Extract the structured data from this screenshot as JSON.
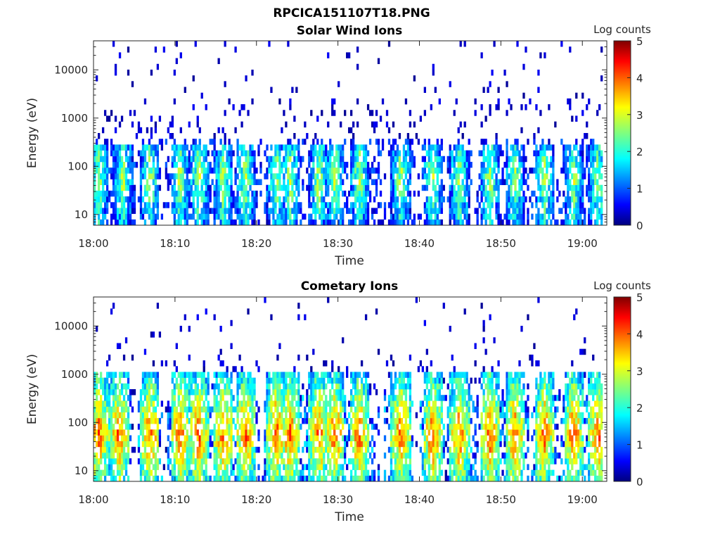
{
  "figure_title": "RPCICA151107T18.PNG",
  "colorbar_label": "Log counts",
  "chart_data": [
    {
      "type": "heatmap",
      "title": "Solar Wind Ions",
      "xlabel": "Time",
      "ylabel": "Energy (eV)",
      "x_ticks": [
        "18:00",
        "18:10",
        "18:20",
        "18:30",
        "18:40",
        "18:50",
        "19:00"
      ],
      "x_range_minutes": [
        0,
        63
      ],
      "y_scale": "log",
      "y_ticks": [
        10,
        100,
        1000,
        10000
      ],
      "y_range": [
        6,
        40000
      ],
      "colorbar": {
        "label": "Log counts",
        "range": [
          0,
          5
        ],
        "ticks": [
          0,
          1,
          2,
          3,
          4,
          5
        ],
        "colormap": "jet"
      },
      "peak_minutes": [
        0.5,
        3.5,
        6.8,
        10.5,
        12.8,
        15.8,
        18.5,
        22.3,
        24.0,
        27.5,
        29.5,
        32.5,
        37.6,
        41.5,
        44.8,
        48.5,
        51.6,
        55.2,
        58.8,
        61.8
      ],
      "peak_level_range": [
        1.0,
        2.8
      ],
      "peak_energy_eV": [
        20,
        300
      ]
    },
    {
      "type": "heatmap",
      "title": "Cometary Ions",
      "xlabel": "Time",
      "ylabel": "Energy (eV)",
      "x_ticks": [
        "18:00",
        "18:10",
        "18:20",
        "18:30",
        "18:40",
        "18:50",
        "19:00"
      ],
      "x_range_minutes": [
        0,
        63
      ],
      "y_scale": "log",
      "y_ticks": [
        10,
        100,
        1000,
        10000
      ],
      "y_range": [
        6,
        40000
      ],
      "colorbar": {
        "label": "Log counts",
        "range": [
          0,
          5
        ],
        "ticks": [
          0,
          1,
          2,
          3,
          4,
          5
        ],
        "colormap": "jet"
      },
      "peak_minutes": [
        0.5,
        3.0,
        6.8,
        10.5,
        12.8,
        15.8,
        18.5,
        22.3,
        24.0,
        27.5,
        29.5,
        32.5,
        37.6,
        41.5,
        44.8,
        48.5,
        51.6,
        55.2,
        58.8,
        61.8
      ],
      "peak_level_range": [
        2.5,
        4.0
      ],
      "peak_energy_eV": [
        20,
        1000
      ]
    }
  ]
}
